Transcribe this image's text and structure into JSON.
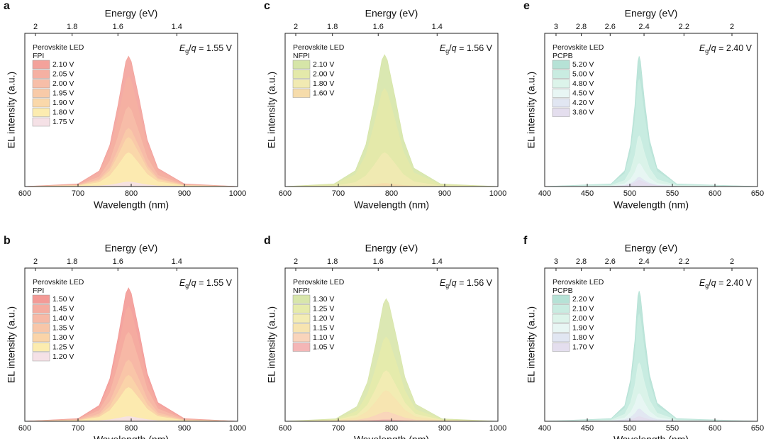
{
  "chart_data": [
    {
      "type": "area",
      "panel": "a",
      "xlabel": "Wavelength (nm)",
      "x2label": "Energy (eV)",
      "ylabel": "EL intensity (a.u.)",
      "legend_title": "Perovskite LED",
      "legend_subtitle": "FPI",
      "annotation": [
        "E",
        "g",
        "/",
        "q",
        " = 1.55 V"
      ],
      "x": [
        600,
        700,
        740,
        760,
        775,
        790,
        795,
        800,
        815,
        830,
        850,
        900,
        1000
      ],
      "xlim": [
        600,
        1000
      ],
      "xticks": [
        600,
        700,
        800,
        900,
        1000
      ],
      "x2ticks": [
        {
          "value": 620,
          "label": "2"
        },
        {
          "value": 688.9,
          "label": "1.8"
        },
        {
          "value": 775,
          "label": "1.6"
        },
        {
          "value": 885.7,
          "label": "1.4"
        }
      ],
      "ylim": [
        0,
        1
      ],
      "series": [
        {
          "name": "2.10 V",
          "color": "#f3a29b",
          "values": [
            0,
            0.017,
            0.102,
            0.272,
            0.527,
            0.816,
            0.85,
            0.816,
            0.57,
            0.306,
            0.119,
            0.017,
            0
          ]
        },
        {
          "name": "2.05 V",
          "color": "#f5b0a2",
          "values": [
            0,
            0.014,
            0.086,
            0.23,
            0.446,
            0.691,
            0.72,
            0.691,
            0.482,
            0.259,
            0.101,
            0.014,
            0
          ]
        },
        {
          "name": "2.00 V",
          "color": "#f7bea8",
          "values": [
            0,
            0.01,
            0.062,
            0.166,
            0.322,
            0.499,
            0.52,
            0.499,
            0.348,
            0.187,
            0.073,
            0.01,
            0
          ]
        },
        {
          "name": "1.95 V",
          "color": "#f8caa8",
          "values": [
            0,
            0.008,
            0.046,
            0.122,
            0.236,
            0.365,
            0.38,
            0.365,
            0.255,
            0.137,
            0.053,
            0.008,
            0
          ]
        },
        {
          "name": "1.90 V",
          "color": "#fad8aa",
          "values": [
            0,
            0.006,
            0.038,
            0.102,
            0.198,
            0.307,
            0.32,
            0.307,
            0.214,
            0.115,
            0.045,
            0.006,
            0
          ]
        },
        {
          "name": "1.80 V",
          "color": "#fcecb0",
          "values": [
            0,
            0.004,
            0.026,
            0.07,
            0.136,
            0.211,
            0.22,
            0.211,
            0.147,
            0.079,
            0.031,
            0.004,
            0
          ]
        },
        {
          "name": "1.75 V",
          "color": "#f5e1e6",
          "values": [
            0,
            0.001,
            0.004,
            0.01,
            0.019,
            0.029,
            0.03,
            0.029,
            0.02,
            0.011,
            0.004,
            0.001,
            0
          ]
        }
      ]
    },
    {
      "type": "area",
      "panel": "b",
      "xlabel": "Wavelength (nm)",
      "x2label": "Energy (eV)",
      "ylabel": "EL intensity (a.u.)",
      "legend_title": "Perovskite LED",
      "legend_subtitle": "FPI",
      "annotation": [
        "E",
        "g",
        "/",
        "q",
        " = 1.55 V"
      ],
      "x": [
        600,
        700,
        740,
        760,
        775,
        790,
        795,
        800,
        815,
        830,
        850,
        900,
        1000
      ],
      "xlim": [
        600,
        1000
      ],
      "xticks": [
        600,
        700,
        800,
        900,
        1000
      ],
      "x2ticks": [
        {
          "value": 620,
          "label": "2"
        },
        {
          "value": 688.9,
          "label": "1.8"
        },
        {
          "value": 775,
          "label": "1.6"
        },
        {
          "value": 885.7,
          "label": "1.4"
        }
      ],
      "ylim": [
        0,
        1
      ],
      "series": [
        {
          "name": "1.50 V",
          "color": "#f39a96",
          "values": [
            0,
            0.017,
            0.104,
            0.278,
            0.539,
            0.835,
            0.87,
            0.835,
            0.583,
            0.313,
            0.122,
            0.017,
            0
          ]
        },
        {
          "name": "1.45 V",
          "color": "#f5aca0",
          "values": [
            0,
            0.015,
            0.09,
            0.24,
            0.465,
            0.72,
            0.75,
            0.72,
            0.503,
            0.27,
            0.105,
            0.015,
            0
          ]
        },
        {
          "name": "1.40 V",
          "color": "#f7b9a6",
          "values": [
            0,
            0.012,
            0.07,
            0.186,
            0.36,
            0.557,
            0.58,
            0.557,
            0.389,
            0.209,
            0.081,
            0.012,
            0
          ]
        },
        {
          "name": "1.35 V",
          "color": "#f8c6a8",
          "values": [
            0,
            0.008,
            0.048,
            0.128,
            0.248,
            0.384,
            0.4,
            0.384,
            0.268,
            0.144,
            0.056,
            0.008,
            0
          ]
        },
        {
          "name": "1.30 V",
          "color": "#fad4a8",
          "values": [
            0,
            0.006,
            0.036,
            0.096,
            0.186,
            0.288,
            0.3,
            0.288,
            0.201,
            0.108,
            0.042,
            0.006,
            0
          ]
        },
        {
          "name": "1.25 V",
          "color": "#fcecaf",
          "values": [
            0,
            0.004,
            0.026,
            0.07,
            0.136,
            0.211,
            0.22,
            0.211,
            0.147,
            0.079,
            0.031,
            0.004,
            0
          ]
        },
        {
          "name": "1.20 V",
          "color": "#f5e1e6",
          "values": [
            0,
            0.001,
            0.004,
            0.01,
            0.019,
            0.029,
            0.03,
            0.029,
            0.02,
            0.011,
            0.004,
            0.001,
            0
          ]
        }
      ]
    },
    {
      "type": "area",
      "panel": "c",
      "xlabel": "Wavelength (nm)",
      "x2label": "Energy (eV)",
      "ylabel": "EL intensity (a.u.)",
      "legend_title": "Perovskite LED",
      "legend_subtitle": "NFPI",
      "annotation": [
        "E",
        "g",
        "/",
        "q",
        " = 1.56 V"
      ],
      "x": [
        600,
        692,
        732,
        752,
        767,
        782,
        787,
        792,
        807,
        822,
        842,
        892,
        1000
      ],
      "xlim": [
        600,
        1000
      ],
      "xticks": [
        600,
        700,
        800,
        900,
        1000
      ],
      "x2ticks": [
        {
          "value": 620,
          "label": "2"
        },
        {
          "value": 688.9,
          "label": "1.8"
        },
        {
          "value": 775,
          "label": "1.6"
        },
        {
          "value": 885.7,
          "label": "1.4"
        }
      ],
      "ylim": [
        0,
        1
      ],
      "series": [
        {
          "name": "2.10 V",
          "color": "#d6e5a8",
          "values": [
            0,
            0.017,
            0.103,
            0.275,
            0.533,
            0.826,
            0.86,
            0.826,
            0.576,
            0.31,
            0.12,
            0.017,
            0
          ]
        },
        {
          "name": "2.00 V",
          "color": "#e4e9aa",
          "values": [
            0,
            0.013,
            0.077,
            0.205,
            0.397,
            0.614,
            0.64,
            0.614,
            0.429,
            0.23,
            0.09,
            0.013,
            0
          ]
        },
        {
          "name": "1.80 V",
          "color": "#f1eab2",
          "values": [
            0,
            0.004,
            0.026,
            0.07,
            0.136,
            0.211,
            0.22,
            0.211,
            0.147,
            0.079,
            0.031,
            0.004,
            0
          ]
        },
        {
          "name": "1.60 V",
          "color": "#f6dcab",
          "values": [
            0,
            0,
            0.002,
            0.006,
            0.012,
            0.019,
            0.02,
            0.019,
            0.013,
            0.007,
            0.003,
            0,
            0
          ]
        }
      ]
    },
    {
      "type": "area",
      "panel": "d",
      "xlabel": "Wavelength (nm)",
      "x2label": "Energy (eV)",
      "ylabel": "EL intensity (a.u.)",
      "legend_title": "Perovskite LED",
      "legend_subtitle": "NFPI",
      "annotation": [
        "E",
        "g",
        "/",
        "q",
        " = 1.56 V"
      ],
      "x": [
        600,
        695,
        735,
        755,
        770,
        785,
        790,
        795,
        810,
        825,
        845,
        895,
        1000
      ],
      "xlim": [
        600,
        1000
      ],
      "xticks": [
        600,
        700,
        800,
        900,
        1000
      ],
      "x2ticks": [
        {
          "value": 620,
          "label": "2"
        },
        {
          "value": 688.9,
          "label": "1.8"
        },
        {
          "value": 775,
          "label": "1.6"
        },
        {
          "value": 885.7,
          "label": "1.4"
        }
      ],
      "ylim": [
        0,
        1
      ],
      "series": [
        {
          "name": "1.30 V",
          "color": "#d8e6ab",
          "values": [
            0,
            0.016,
            0.096,
            0.256,
            0.496,
            0.768,
            0.8,
            0.768,
            0.536,
            0.288,
            0.112,
            0.016,
            0
          ]
        },
        {
          "name": "1.25 V",
          "color": "#e6ebab",
          "values": [
            0,
            0.011,
            0.066,
            0.176,
            0.341,
            0.528,
            0.55,
            0.528,
            0.369,
            0.198,
            0.077,
            0.011,
            0
          ]
        },
        {
          "name": "1.20 V",
          "color": "#f3ecb4",
          "values": [
            0,
            0.007,
            0.04,
            0.106,
            0.205,
            0.317,
            0.33,
            0.317,
            0.221,
            0.119,
            0.046,
            0.007,
            0
          ]
        },
        {
          "name": "1.15 V",
          "color": "#f7e4b0",
          "values": [
            0,
            0.004,
            0.024,
            0.064,
            0.124,
            0.192,
            0.2,
            0.192,
            0.134,
            0.072,
            0.028,
            0.004,
            0
          ]
        },
        {
          "name": "1.10 V",
          "color": "#f9d4bb",
          "values": [
            0,
            0.001,
            0.007,
            0.019,
            0.037,
            0.058,
            0.06,
            0.058,
            0.04,
            0.022,
            0.008,
            0.001,
            0
          ]
        },
        {
          "name": "1.05 V",
          "color": "#f4b6b6",
          "values": [
            0,
            0,
            0.001,
            0.003,
            0.006,
            0.01,
            0.01,
            0.01,
            0.007,
            0.004,
            0.001,
            0,
            0
          ]
        }
      ]
    },
    {
      "type": "area",
      "panel": "e",
      "xlabel": "Wavelength (nm)",
      "x2label": "Energy (eV)",
      "ylabel": "EL intensity (a.u.)",
      "legend_title": "Perovskite LED",
      "legend_subtitle": "PCPB",
      "annotation": [
        "E",
        "g",
        "/",
        "q",
        " = 2.40 V"
      ],
      "x": [
        400,
        478,
        494,
        501,
        506,
        509.5,
        511,
        512.5,
        517,
        523,
        532,
        555,
        650
      ],
      "xlim": [
        400,
        650
      ],
      "xticks": [
        400,
        450,
        500,
        550,
        600,
        650
      ],
      "x2ticks": [
        {
          "value": 413.3,
          "label": "3"
        },
        {
          "value": 442.9,
          "label": "2.8"
        },
        {
          "value": 476.9,
          "label": "2.6"
        },
        {
          "value": 516.7,
          "label": "2.4"
        },
        {
          "value": 563.6,
          "label": "2.2"
        },
        {
          "value": 620,
          "label": "2"
        }
      ],
      "ylim": [
        0,
        1
      ],
      "series": [
        {
          "name": "5.20 V",
          "color": "#b6e2d6",
          "values": [
            0,
            0.017,
            0.102,
            0.272,
            0.527,
            0.816,
            0.85,
            0.816,
            0.57,
            0.306,
            0.119,
            0.017,
            0
          ]
        },
        {
          "name": "5.00 V",
          "color": "#c9ece1",
          "values": [
            0,
            0.014,
            0.084,
            0.224,
            0.434,
            0.672,
            0.7,
            0.672,
            0.469,
            0.252,
            0.098,
            0.014,
            0
          ]
        },
        {
          "name": "4.80 V",
          "color": "#dcf4ea",
          "values": [
            0,
            0.007,
            0.04,
            0.106,
            0.205,
            0.317,
            0.33,
            0.317,
            0.221,
            0.119,
            0.046,
            0.007,
            0
          ]
        },
        {
          "name": "4.50 V",
          "color": "#e8f6f4",
          "values": [
            0,
            0.003,
            0.018,
            0.048,
            0.093,
            0.144,
            0.15,
            0.144,
            0.101,
            0.054,
            0.021,
            0.003,
            0
          ]
        },
        {
          "name": "4.20 V",
          "color": "#e1e6f2",
          "values": [
            0,
            0.001,
            0.007,
            0.019,
            0.037,
            0.058,
            0.06,
            0.058,
            0.04,
            0.022,
            0.008,
            0.001,
            0
          ]
        },
        {
          "name": "3.80 V",
          "color": "#e4deee",
          "values": [
            0,
            0.001,
            0.005,
            0.013,
            0.025,
            0.038,
            0.04,
            0.038,
            0.027,
            0.014,
            0.006,
            0.001,
            0
          ]
        }
      ]
    },
    {
      "type": "area",
      "panel": "f",
      "xlabel": "Wavelength (nm)",
      "x2label": "Energy (eV)",
      "ylabel": "EL intensity (a.u.)",
      "legend_title": "Perovskite LED",
      "legend_subtitle": "PCPB",
      "annotation": [
        "E",
        "g",
        "/",
        "q",
        " = 2.40 V"
      ],
      "x": [
        400,
        478,
        494,
        501,
        506,
        509.5,
        511,
        512.5,
        517,
        523,
        532,
        555,
        650
      ],
      "xlim": [
        400,
        650
      ],
      "xticks": [
        400,
        450,
        500,
        550,
        600,
        650
      ],
      "x2ticks": [
        {
          "value": 413.3,
          "label": "3"
        },
        {
          "value": 442.9,
          "label": "2.8"
        },
        {
          "value": 476.9,
          "label": "2.6"
        },
        {
          "value": 516.7,
          "label": "2.4"
        },
        {
          "value": 563.6,
          "label": "2.2"
        },
        {
          "value": 620,
          "label": "2"
        }
      ],
      "ylim": [
        0,
        1
      ],
      "series": [
        {
          "name": "2.20 V",
          "color": "#b6e2d6",
          "values": [
            0,
            0.017,
            0.102,
            0.272,
            0.527,
            0.816,
            0.85,
            0.816,
            0.57,
            0.306,
            0.119,
            0.017,
            0
          ]
        },
        {
          "name": "2.10 V",
          "color": "#c9ece1",
          "values": [
            0,
            0.014,
            0.084,
            0.224,
            0.434,
            0.672,
            0.7,
            0.672,
            0.469,
            0.252,
            0.098,
            0.014,
            0
          ]
        },
        {
          "name": "2.00 V",
          "color": "#dcf4ea",
          "values": [
            0,
            0.008,
            0.046,
            0.122,
            0.236,
            0.365,
            0.38,
            0.365,
            0.255,
            0.137,
            0.053,
            0.008,
            0
          ]
        },
        {
          "name": "1.90 V",
          "color": "#e8f6f4",
          "values": [
            0,
            0.004,
            0.022,
            0.058,
            0.112,
            0.173,
            0.18,
            0.173,
            0.121,
            0.065,
            0.025,
            0.004,
            0
          ]
        },
        {
          "name": "1.80 V",
          "color": "#e1e6f2",
          "values": [
            0,
            0.002,
            0.01,
            0.026,
            0.05,
            0.077,
            0.08,
            0.077,
            0.054,
            0.029,
            0.011,
            0.002,
            0
          ]
        },
        {
          "name": "1.70 V",
          "color": "#e4deee",
          "values": [
            0,
            0.001,
            0.004,
            0.01,
            0.019,
            0.029,
            0.03,
            0.029,
            0.02,
            0.011,
            0.004,
            0.001,
            0
          ]
        }
      ]
    }
  ]
}
